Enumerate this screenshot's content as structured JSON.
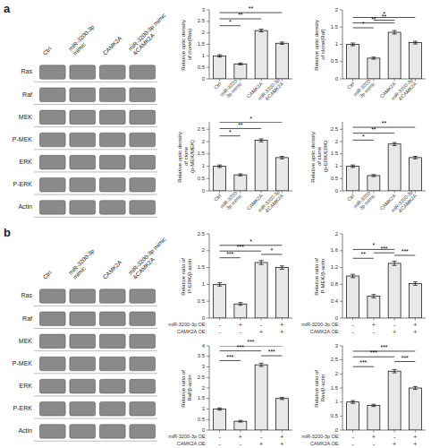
{
  "chart_data": [
    {
      "type": "blot",
      "title": "a",
      "categories": [
        "Ras",
        "Raf",
        "MEK",
        "P-MEK",
        "ERK",
        "P-ERK",
        "Actin"
      ],
      "columns": [
        "Ctrl",
        "miR-3200-3p\nmimic",
        "CAMK2A",
        "miR-3200-3p mimic\n&CAMK2A"
      ]
    },
    {
      "type": "bar",
      "ylabel": "Relative optic density of clone(Ras)",
      "categories": [
        "Ctrl",
        "miR-3200-\n3p mimic",
        "CAMK2A",
        "miR-3200-3p\n&CAMK2A"
      ],
      "values": [
        1.0,
        0.65,
        2.1,
        1.55
      ],
      "errors": [
        0.05,
        0.04,
        0.06,
        0.05
      ],
      "color": "#e8e8e8",
      "ylim": [
        0,
        3.0
      ],
      "yticks": [
        0,
        0.5,
        1,
        1.5,
        2,
        2.5,
        3
      ],
      "annotations": [
        {
          "x1": 0,
          "x2": 1,
          "y": 2.31,
          "text": "*"
        },
        {
          "x1": 0,
          "x2": 2,
          "y": 2.61,
          "text": "**"
        },
        {
          "x1": 0,
          "x2": 3,
          "y": 2.88,
          "text": "**"
        }
      ]
    },
    {
      "type": "bar",
      "ylabel": "Relative optic density of clone(Raf)",
      "categories": [
        "Ctrl",
        "miR-3200-\n3p mimic",
        "CAMK2A",
        "miR-3200-3p\n&CAMK2A"
      ],
      "values": [
        1.0,
        0.6,
        1.35,
        1.05
      ],
      "errors": [
        0.04,
        0.03,
        0.05,
        0.04
      ],
      "color": "#e8e8e8",
      "ylim": [
        0,
        2.0
      ],
      "yticks": [
        0,
        0.5,
        1,
        1.5,
        2
      ],
      "annotations": [
        {
          "x1": 0,
          "x2": 1,
          "y": 1.48,
          "text": "*"
        },
        {
          "x1": 0,
          "x2": 2,
          "y": 1.62,
          "text": "**"
        },
        {
          "x1": 1,
          "x2": 2,
          "y": 1.7,
          "text": "**"
        },
        {
          "x1": 0,
          "x2": 3,
          "y": 1.78,
          "text": "*"
        }
      ]
    },
    {
      "type": "bar",
      "ylabel": "Relative optic density of clone\n(p-MEK/MEK)",
      "categories": [
        "Ctrl",
        "miR-3200-\n3p mimic",
        "CAMK2A",
        "miR-3200-3p\n&CAMK2A"
      ],
      "values": [
        1.0,
        0.65,
        2.05,
        1.35
      ],
      "errors": [
        0.05,
        0.04,
        0.06,
        0.05
      ],
      "color": "#e8e8e8",
      "ylim": [
        0,
        2.8
      ],
      "yticks": [
        0,
        0.5,
        1,
        1.5,
        2,
        2.5
      ],
      "annotations": [
        {
          "x1": 0,
          "x2": 1,
          "y": 2.23,
          "text": "*"
        },
        {
          "x1": 0,
          "x2": 2,
          "y": 2.53,
          "text": "**"
        },
        {
          "x1": 0,
          "x2": 3,
          "y": 2.79,
          "text": "*"
        }
      ]
    },
    {
      "type": "bar",
      "ylabel": "Relative optic density of clone\n(p-ERK/ERK)",
      "categories": [
        "Ctrl",
        "miR-3200-\n3p mimic",
        "CAMK2A",
        "miR-3200-3p\n&CAMK2A"
      ],
      "values": [
        1.0,
        0.62,
        1.9,
        1.35
      ],
      "errors": [
        0.05,
        0.04,
        0.06,
        0.05
      ],
      "color": "#e8e8e8",
      "ylim": [
        0,
        2.8
      ],
      "yticks": [
        0,
        0.5,
        1,
        1.5,
        2,
        2.5
      ],
      "annotations": [
        {
          "x1": 0,
          "x2": 1,
          "y": 2.06,
          "text": "*"
        },
        {
          "x1": 0,
          "x2": 2,
          "y": 2.34,
          "text": "**"
        },
        {
          "x1": 0,
          "x2": 3,
          "y": 2.58,
          "text": "**"
        }
      ]
    },
    {
      "type": "blot",
      "title": "b",
      "categories": [
        "Ras",
        "Raf",
        "MEK",
        "P-MEK",
        "ERK",
        "P-ERK",
        "Actin"
      ],
      "columns": [
        "Ctrl",
        "miR-3200-3p\nmimic",
        "CAMK2A",
        "miR-3200-3p mimic\n&CAMK2A"
      ]
    },
    {
      "type": "bar",
      "ylabel": "Relative ratio of P-ERK/β-actin",
      "categories": [
        [
          "-",
          "-"
        ],
        [
          "+",
          "-"
        ],
        [
          "-",
          "+"
        ],
        [
          "+",
          "+"
        ]
      ],
      "category_rows": [
        "miR-3200-3p OE:",
        "CAMK2A OE:"
      ],
      "values": [
        1.0,
        0.42,
        1.65,
        1.5
      ],
      "errors": [
        0.05,
        0.04,
        0.06,
        0.05
      ],
      "color": "#e8e8e8",
      "ylim": [
        0,
        2.5
      ],
      "yticks": [
        0,
        0.5,
        1,
        1.5,
        2,
        2.5
      ],
      "annotations": [
        {
          "x1": 0,
          "x2": 1,
          "y": 1.79,
          "text": "***"
        },
        {
          "x1": 0,
          "x2": 2,
          "y": 1.99,
          "text": "***"
        },
        {
          "x1": 2,
          "x2": 3,
          "y": 1.89,
          "text": "*"
        },
        {
          "x1": 0,
          "x2": 3,
          "y": 2.16,
          "text": "*"
        }
      ]
    },
    {
      "type": "bar",
      "ylabel": "Relative ratio of P-MEK/β-actin",
      "categories": [
        [
          "-",
          "-"
        ],
        [
          "+",
          "-"
        ],
        [
          "-",
          "+"
        ],
        [
          "+",
          "+"
        ]
      ],
      "category_rows": [
        "miR-3200-3p OE:",
        "CAMK2A OE:"
      ],
      "values": [
        1.0,
        0.52,
        1.3,
        0.82
      ],
      "errors": [
        0.04,
        0.04,
        0.05,
        0.04
      ],
      "color": "#e8e8e8",
      "ylim": [
        0,
        2.0
      ],
      "yticks": [
        0,
        0.4,
        0.8,
        1.2,
        1.6,
        2
      ],
      "annotations": [
        {
          "x1": 0,
          "x2": 1,
          "y": 1.42,
          "text": "**"
        },
        {
          "x1": 1,
          "x2": 2,
          "y": 1.55,
          "text": "***"
        },
        {
          "x1": 0,
          "x2": 2,
          "y": 1.63,
          "text": "*"
        },
        {
          "x1": 2,
          "x2": 3,
          "y": 1.49,
          "text": "***"
        }
      ]
    },
    {
      "type": "bar",
      "ylabel": "Relative ratio of Raf/β-actin",
      "categories": [
        [
          "-",
          "-"
        ],
        [
          "+",
          "-"
        ],
        [
          "-",
          "+"
        ],
        [
          "+",
          "+"
        ]
      ],
      "category_rows": [
        "miR-3200-3p OE:",
        "CAMK2A OE:"
      ],
      "values": [
        1.0,
        0.42,
        3.1,
        1.5
      ],
      "errors": [
        0.05,
        0.04,
        0.08,
        0.05
      ],
      "color": "#e8e8e8",
      "ylim": [
        0,
        4.0
      ],
      "yticks": [
        0,
        0.5,
        1,
        1.5,
        2,
        2.5,
        3,
        3.5,
        4
      ],
      "annotations": [
        {
          "x1": 0,
          "x2": 1,
          "y": 3.3,
          "text": "***"
        },
        {
          "x1": 0,
          "x2": 2,
          "y": 3.76,
          "text": "***"
        },
        {
          "x1": 2,
          "x2": 3,
          "y": 3.53,
          "text": "***"
        },
        {
          "x1": 0,
          "x2": 3,
          "y": 4.0,
          "text": "***"
        }
      ]
    },
    {
      "type": "bar",
      "ylabel": "Relative ratio of Ras/β-actin",
      "categories": [
        [
          "-",
          "-"
        ],
        [
          "+",
          "-"
        ],
        [
          "-",
          "+"
        ],
        [
          "+",
          "+"
        ]
      ],
      "category_rows": [
        "miR-3200-3p OE:",
        "CAMK2A OE:"
      ],
      "values": [
        1.0,
        0.88,
        2.1,
        1.5
      ],
      "errors": [
        0.05,
        0.04,
        0.06,
        0.05
      ],
      "color": "#e8e8e8",
      "ylim": [
        0,
        3.0
      ],
      "yticks": [
        0,
        0.5,
        1,
        1.5,
        2,
        2.5,
        3
      ],
      "annotations": [
        {
          "x1": 0,
          "x2": 1,
          "y": 2.26,
          "text": "***"
        },
        {
          "x1": 0,
          "x2": 2,
          "y": 2.61,
          "text": "***"
        },
        {
          "x1": 2,
          "x2": 3,
          "y": 2.44,
          "text": "***"
        },
        {
          "x1": 0,
          "x2": 3,
          "y": 2.81,
          "text": "***"
        }
      ]
    }
  ]
}
